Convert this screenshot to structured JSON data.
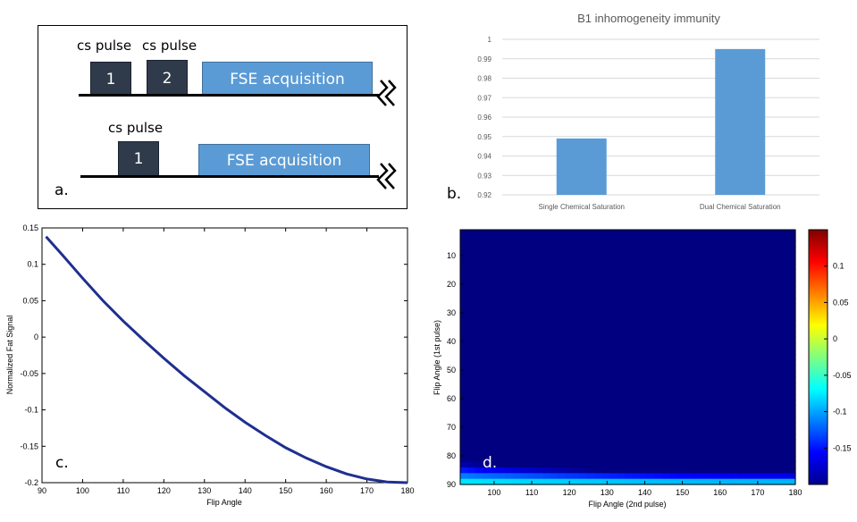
{
  "panel_a": {
    "label": "a.",
    "row1": {
      "pulse1_caption": "cs pulse",
      "pulse2_caption": "cs pulse",
      "pulse1_num": "1",
      "pulse2_num": "2",
      "acq_label": "FSE acquisition"
    },
    "row2": {
      "pulse_caption": "cs pulse",
      "pulse_num": "1",
      "acq_label": "FSE acquisition"
    }
  },
  "panel_b": {
    "label": "b."
  },
  "panel_c": {
    "label": "c."
  },
  "panel_d": {
    "label": "d."
  },
  "chart_data": [
    {
      "id": "b",
      "type": "bar",
      "title": "B1 inhomogeneity immunity",
      "categories": [
        "Single Chemical Saturation",
        "Dual Chemical Saturation"
      ],
      "values": [
        0.949,
        0.995
      ],
      "ylim": [
        0.92,
        1.0
      ],
      "yticks": [
        0.92,
        0.93,
        0.94,
        0.95,
        0.96,
        0.97,
        0.98,
        0.99,
        1
      ],
      "ytick_labels": [
        "0.92",
        "0.93",
        "0.94",
        "0.95",
        "0.96",
        "0.97",
        "0.98",
        "0.99",
        "1"
      ],
      "color": "#5b9bd5",
      "grid": true
    },
    {
      "id": "c",
      "type": "line",
      "xlabel": "Flip Angle",
      "ylabel": "Normalized Fat Signal",
      "xlim": [
        90,
        180
      ],
      "ylim": [
        -0.2,
        0.15
      ],
      "xticks": [
        90,
        100,
        110,
        120,
        130,
        140,
        150,
        160,
        170,
        180
      ],
      "xtick_labels": [
        "90",
        "100",
        "110",
        "120",
        "130",
        "140",
        "150",
        "160",
        "170",
        "180"
      ],
      "yticks": [
        0.15,
        0.1,
        0.05,
        0,
        -0.05,
        -0.1,
        -0.15,
        -0.2
      ],
      "ytick_labels": [
        "0.15",
        "0.1",
        "0.05",
        "0",
        "-0.05",
        "-0.1",
        "-0.15",
        "-0.2"
      ],
      "x": [
        91,
        95,
        100,
        105,
        110,
        115,
        120,
        125,
        130,
        135,
        140,
        145,
        150,
        155,
        160,
        165,
        170,
        175,
        180
      ],
      "y": [
        0.138,
        0.113,
        0.081,
        0.05,
        0.022,
        -0.004,
        -0.029,
        -0.053,
        -0.075,
        -0.097,
        -0.117,
        -0.135,
        -0.152,
        -0.166,
        -0.178,
        -0.188,
        -0.195,
        -0.199,
        -0.2
      ],
      "color": "#1f2f8f"
    },
    {
      "id": "d",
      "type": "heatmap",
      "xlabel": "Flip Angle (2nd pulse)",
      "ylabel": "Flip Angle (1st pulse)",
      "xrange": [
        91,
        180
      ],
      "yrange": [
        1,
        90
      ],
      "xticks": [
        100,
        110,
        120,
        130,
        140,
        150,
        160,
        170,
        180
      ],
      "xtick_labels": [
        "100",
        "110",
        "120",
        "130",
        "140",
        "150",
        "160",
        "170",
        "180"
      ],
      "yticks": [
        10,
        20,
        30,
        40,
        50,
        60,
        70,
        80,
        90
      ],
      "ytick_labels": [
        "10",
        "20",
        "30",
        "40",
        "50",
        "60",
        "70",
        "80",
        "90"
      ],
      "colorbar_range": [
        -0.2,
        0.15
      ],
      "colorbar_ticks": [
        0.1,
        0.05,
        0,
        -0.05,
        -0.1,
        -0.15
      ],
      "colorbar_labels": [
        "0.1",
        "0.05",
        "0",
        "-0.05",
        "-0.1",
        "-0.15"
      ],
      "colormap": "jet"
    }
  ]
}
